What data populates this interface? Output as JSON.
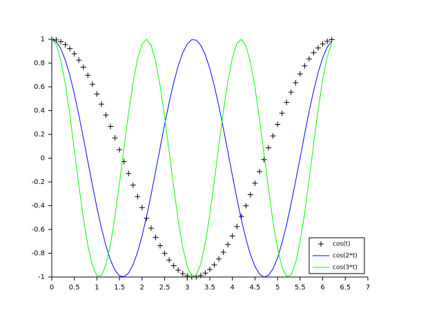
{
  "chart_data": {
    "type": "line",
    "x": [
      0,
      0.1,
      0.2,
      0.3,
      0.4,
      0.5,
      0.6,
      0.7,
      0.8,
      0.9,
      1,
      1.1,
      1.2,
      1.3,
      1.4,
      1.5,
      1.6,
      1.7,
      1.8,
      1.9,
      2,
      2.1,
      2.2,
      2.3,
      2.4,
      2.5,
      2.6,
      2.7,
      2.8,
      2.9,
      3,
      3.1,
      3.2,
      3.3,
      3.4,
      3.5,
      3.6,
      3.7,
      3.8,
      3.9,
      4,
      4.1,
      4.2,
      4.3,
      4.4,
      4.5,
      4.6,
      4.7,
      4.8,
      4.9,
      5,
      5.1,
      5.2,
      5.3,
      5.4,
      5.5,
      5.6,
      5.7,
      5.8,
      5.9,
      6,
      6.1,
      6.2
    ],
    "series": [
      {
        "name": "cos(t)",
        "color": "#000000",
        "style": "marker",
        "values": [
          1,
          0.995,
          0.98,
          0.955,
          0.921,
          0.878,
          0.825,
          0.765,
          0.697,
          0.622,
          0.54,
          0.454,
          0.362,
          0.267,
          0.17,
          0.071,
          -0.029,
          -0.129,
          -0.227,
          -0.323,
          -0.416,
          -0.505,
          -0.589,
          -0.666,
          -0.737,
          -0.801,
          -0.857,
          -0.904,
          -0.942,
          -0.971,
          -0.99,
          -0.999,
          -0.998,
          -0.987,
          -0.967,
          -0.936,
          -0.897,
          -0.848,
          -0.791,
          -0.726,
          -0.654,
          -0.575,
          -0.49,
          -0.401,
          -0.307,
          -0.211,
          -0.112,
          -0.012,
          0.087,
          0.187,
          0.284,
          0.378,
          0.469,
          0.554,
          0.635,
          0.709,
          0.776,
          0.835,
          0.886,
          0.927,
          0.96,
          0.983,
          0.997
        ]
      },
      {
        "name": "cos(2*t)",
        "color": "#0000ff",
        "style": "line",
        "values": [
          1,
          0.98,
          0.921,
          0.825,
          0.697,
          0.54,
          0.362,
          0.17,
          -0.029,
          -0.227,
          -0.416,
          -0.589,
          -0.737,
          -0.857,
          -0.942,
          -0.99,
          -0.998,
          -0.967,
          -0.897,
          -0.791,
          -0.654,
          -0.49,
          -0.307,
          -0.112,
          0.087,
          0.284,
          0.469,
          0.635,
          0.776,
          0.886,
          0.96,
          0.997,
          0.993,
          0.95,
          0.869,
          0.754,
          0.608,
          0.438,
          0.251,
          0.054,
          -0.146,
          -0.34,
          -0.52,
          -0.68,
          -0.811,
          -0.911,
          -0.975,
          -1,
          -0.985,
          -0.931,
          -0.839,
          -0.712,
          -0.561,
          -0.383,
          -0.193,
          0.004,
          0.203,
          0.394,
          0.568,
          0.721,
          0.844,
          0.934,
          0.986
        ]
      },
      {
        "name": "cos(3*t)",
        "color": "#00ff00",
        "style": "line",
        "values": [
          1,
          0.955,
          0.825,
          0.622,
          0.362,
          0.071,
          -0.227,
          -0.505,
          -0.737,
          -0.904,
          -0.99,
          -0.987,
          -0.897,
          -0.726,
          -0.49,
          -0.211,
          0.087,
          0.378,
          0.635,
          0.835,
          0.96,
          1,
          0.95,
          0.816,
          0.608,
          0.347,
          0.054,
          -0.244,
          -0.52,
          -0.749,
          -0.911,
          -0.993,
          -0.985,
          -0.889,
          -0.714,
          -0.476,
          -0.193,
          0.105,
          0.393,
          0.648,
          0.844,
          0.965,
          0.999,
          0.945,
          0.806,
          0.594,
          0.331,
          0.037,
          -0.26,
          -0.534,
          -0.76,
          -0.918,
          -0.995,
          -0.982,
          -0.881,
          -0.702,
          -0.461,
          -0.178,
          0.121,
          0.41,
          0.66,
          0.853,
          0.969
        ]
      }
    ],
    "xlim": [
      0,
      7
    ],
    "xticks": [
      0,
      0.5,
      1,
      1.5,
      2,
      2.5,
      3,
      3.5,
      4,
      4.5,
      5,
      5.5,
      6,
      6.5,
      7
    ],
    "ylim": [
      -1,
      1
    ],
    "yticks": [
      -1,
      -0.8,
      -0.6,
      -0.4,
      -0.2,
      0,
      0.2,
      0.4,
      0.6,
      0.8,
      1
    ],
    "legend": "lower right"
  }
}
